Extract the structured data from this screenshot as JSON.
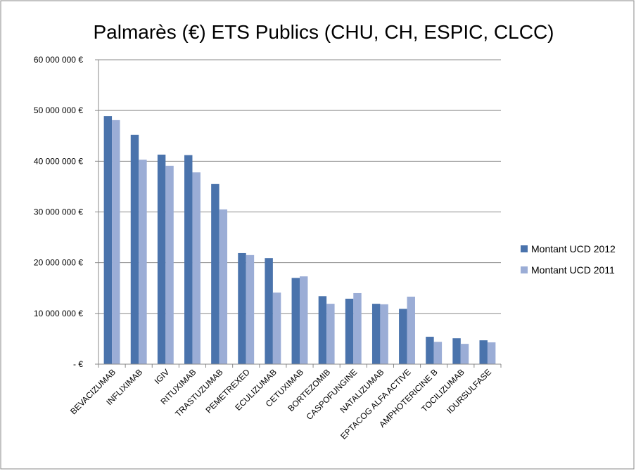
{
  "chart_data": {
    "type": "bar",
    "title": "Palmarès (€) ETS Publics (CHU, CH, ESPIC, CLCC)",
    "categories": [
      "BEVACIZUMAB",
      "INFLIXIMAB",
      "IGIV",
      "RITUXIMAB",
      "TRASTUZUMAB",
      "PEMETREXED",
      "ECULIZUMAB",
      "CETUXIMAB",
      "BORTEZOMIB",
      "CASPOFUNGINE",
      "NATALIZUMAB",
      "EPTACOG ALFA ACTIVE",
      "AMPHOTERICINE B",
      "TOCILIZUMAB",
      "IDURSULFASE"
    ],
    "series": [
      {
        "name": "Montant UCD 2012",
        "color": "#4a73ac",
        "values": [
          48900000,
          45200000,
          41300000,
          41200000,
          35500000,
          21900000,
          20900000,
          17000000,
          13400000,
          12900000,
          11900000,
          10900000,
          5400000,
          5100000,
          4700000
        ]
      },
      {
        "name": "Montant UCD 2011",
        "color": "#9badd6",
        "values": [
          48100000,
          40300000,
          39100000,
          37800000,
          30500000,
          21500000,
          14100000,
          17300000,
          11900000,
          14000000,
          11800000,
          13300000,
          4400000,
          4000000,
          4300000
        ]
      }
    ],
    "ylim": [
      0,
      60000000
    ],
    "yticks": [
      {
        "value": 0,
        "label": "-   €"
      },
      {
        "value": 10000000,
        "label": "10 000 000 €"
      },
      {
        "value": 20000000,
        "label": "20 000 000 €"
      },
      {
        "value": 30000000,
        "label": "30 000 000 €"
      },
      {
        "value": 40000000,
        "label": "40 000 000 €"
      },
      {
        "value": 50000000,
        "label": "50 000 000 €"
      },
      {
        "value": 60000000,
        "label": "60 000 000 €"
      }
    ],
    "grid": true,
    "legend": "right"
  }
}
